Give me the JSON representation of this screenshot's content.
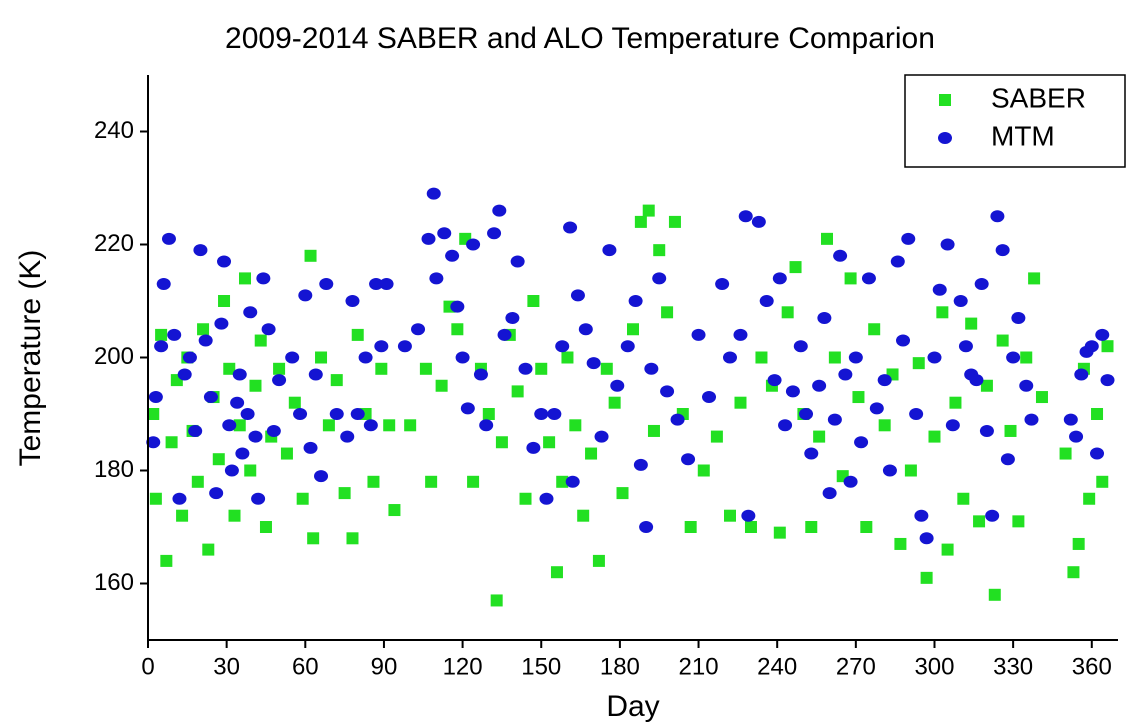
{
  "chart_data": {
    "type": "scatter",
    "title": "2009-2014 SABER and ALO Temperature Comparion",
    "x_label": "Day",
    "y_label": "Temperature (K)",
    "xlim": [
      0,
      370
    ],
    "ylim": [
      150,
      250
    ],
    "xticks": [
      0,
      30,
      60,
      90,
      120,
      150,
      180,
      210,
      240,
      270,
      300,
      330,
      360
    ],
    "yticks": [
      160,
      180,
      200,
      220,
      240
    ],
    "legend": "upper right",
    "series": [
      {
        "name": "SABER",
        "color": "#22e022",
        "marker": "square",
        "x": [
          2,
          3,
          5,
          7,
          9,
          11,
          13,
          15,
          17,
          19,
          21,
          23,
          25,
          27,
          29,
          31,
          33,
          35,
          37,
          39,
          41,
          43,
          45,
          47,
          50,
          53,
          56,
          59,
          62,
          63,
          66,
          69,
          72,
          75,
          78,
          80,
          83,
          86,
          89,
          92,
          94,
          100,
          106,
          108,
          112,
          115,
          118,
          121,
          124,
          127,
          130,
          133,
          135,
          138,
          141,
          144,
          147,
          150,
          153,
          156,
          158,
          160,
          163,
          166,
          169,
          172,
          175,
          178,
          181,
          185,
          188,
          191,
          193,
          195,
          198,
          201,
          204,
          207,
          212,
          217,
          222,
          226,
          230,
          234,
          238,
          241,
          244,
          247,
          250,
          253,
          256,
          259,
          262,
          265,
          268,
          271,
          274,
          277,
          281,
          284,
          287,
          291,
          294,
          297,
          300,
          303,
          305,
          308,
          311,
          314,
          317,
          320,
          323,
          326,
          329,
          332,
          335,
          338,
          341,
          350,
          353,
          355,
          357,
          359,
          362,
          364,
          366
        ],
        "values": [
          190,
          175,
          204,
          164,
          185,
          196,
          172,
          200,
          187,
          178,
          205,
          166,
          193,
          182,
          210,
          198,
          172,
          188,
          214,
          180,
          195,
          203,
          170,
          186,
          198,
          183,
          192,
          175,
          218,
          168,
          200,
          188,
          196,
          176,
          168,
          204,
          190,
          178,
          198,
          188,
          173,
          188,
          198,
          178,
          195,
          209,
          205,
          221,
          178,
          198,
          190,
          157,
          185,
          204,
          194,
          175,
          210,
          198,
          185,
          162,
          178,
          200,
          188,
          172,
          183,
          164,
          198,
          192,
          176,
          205,
          224,
          226,
          187,
          219,
          208,
          224,
          190,
          170,
          180,
          186,
          172,
          192,
          170,
          200,
          195,
          169,
          208,
          216,
          190,
          170,
          186,
          221,
          200,
          179,
          214,
          193,
          170,
          205,
          188,
          197,
          167,
          180,
          199,
          161,
          186,
          208,
          166,
          192,
          175,
          206,
          171,
          195,
          158,
          203,
          187,
          171,
          200,
          214,
          193,
          183,
          162,
          167,
          198,
          175,
          190,
          178,
          202
        ]
      },
      {
        "name": "MTM",
        "color": "#1414d2",
        "marker": "circle",
        "x": [
          2,
          3,
          5,
          6,
          8,
          10,
          12,
          14,
          16,
          18,
          20,
          22,
          24,
          26,
          28,
          29,
          31,
          32,
          34,
          35,
          36,
          38,
          39,
          41,
          42,
          44,
          46,
          48,
          50,
          55,
          58,
          60,
          62,
          64,
          66,
          68,
          72,
          76,
          78,
          80,
          83,
          85,
          87,
          89,
          91,
          98,
          103,
          107,
          109,
          110,
          113,
          116,
          118,
          120,
          122,
          124,
          127,
          129,
          132,
          134,
          136,
          139,
          141,
          144,
          147,
          150,
          152,
          155,
          158,
          161,
          162,
          164,
          167,
          170,
          173,
          176,
          179,
          183,
          186,
          188,
          190,
          192,
          195,
          198,
          202,
          206,
          210,
          214,
          219,
          222,
          226,
          228,
          229,
          233,
          236,
          239,
          241,
          243,
          246,
          249,
          251,
          253,
          256,
          258,
          260,
          262,
          264,
          266,
          268,
          270,
          272,
          275,
          278,
          281,
          283,
          286,
          288,
          290,
          293,
          295,
          297,
          300,
          302,
          305,
          307,
          310,
          312,
          314,
          316,
          318,
          320,
          322,
          324,
          326,
          328,
          330,
          332,
          335,
          337,
          352,
          354,
          356,
          358,
          360,
          362,
          364,
          366
        ],
        "values": [
          185,
          193,
          202,
          213,
          221,
          204,
          175,
          197,
          200,
          187,
          219,
          203,
          193,
          176,
          206,
          217,
          188,
          180,
          192,
          197,
          183,
          190,
          208,
          186,
          175,
          214,
          205,
          187,
          196,
          200,
          190,
          211,
          184,
          197,
          179,
          213,
          190,
          186,
          210,
          190,
          200,
          188,
          213,
          202,
          213,
          202,
          205,
          221,
          229,
          214,
          222,
          218,
          209,
          200,
          191,
          220,
          197,
          188,
          222,
          226,
          204,
          207,
          217,
          198,
          184,
          190,
          175,
          190,
          202,
          223,
          178,
          211,
          205,
          199,
          186,
          219,
          195,
          202,
          210,
          181,
          170,
          198,
          214,
          194,
          189,
          182,
          204,
          193,
          213,
          200,
          204,
          225,
          172,
          224,
          210,
          196,
          214,
          188,
          194,
          202,
          190,
          183,
          195,
          207,
          176,
          189,
          218,
          197,
          178,
          200,
          185,
          214,
          191,
          196,
          180,
          217,
          203,
          221,
          190,
          172,
          168,
          200,
          212,
          220,
          188,
          210,
          202,
          197,
          196,
          213,
          187,
          172,
          225,
          219,
          182,
          200,
          207,
          195,
          189,
          189,
          186,
          197,
          201,
          202,
          183,
          204,
          196
        ]
      }
    ]
  }
}
